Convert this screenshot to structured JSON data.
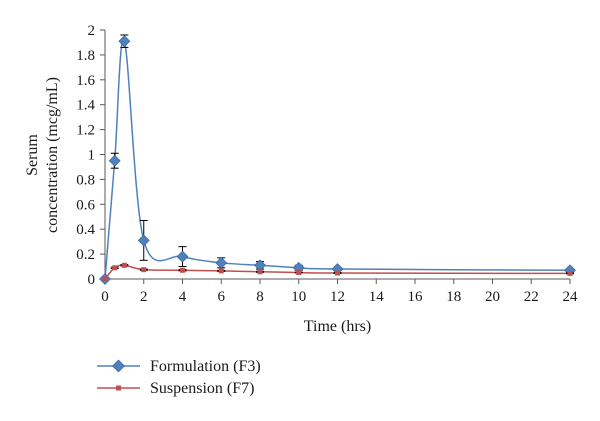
{
  "chart_data": {
    "type": "line",
    "xlabel": "Time (hrs)",
    "ylabel_lines": [
      "Serum",
      "concentration (mcg/mL)"
    ],
    "x_ticks": [
      "0",
      "2",
      "4",
      "6",
      "8",
      "10",
      "12",
      "14",
      "16",
      "18",
      "20",
      "22",
      "24"
    ],
    "y_ticks": [
      "0",
      "0.2",
      "0.4",
      "0.6",
      "0.8",
      "1",
      "1.2",
      "1.4",
      "1.6",
      "1.8",
      "2"
    ],
    "xlim": [
      0,
      24
    ],
    "ylim": [
      0,
      2
    ],
    "grid": false,
    "legend_position": "bottom-left",
    "series": [
      {
        "name": "Formulation (F3)",
        "color": "#4f81bd",
        "marker": "diamond",
        "x": [
          0,
          0.5,
          1,
          2,
          4,
          6,
          8,
          10,
          12,
          24
        ],
        "y": [
          0,
          0.95,
          1.91,
          0.31,
          0.18,
          0.13,
          0.11,
          0.09,
          0.08,
          0.07
        ],
        "error": [
          0,
          0.06,
          0.05,
          0.16,
          0.08,
          0.04,
          0.03,
          0.02,
          0.01,
          0.01
        ]
      },
      {
        "name": "Suspension (F7)",
        "color": "#c0504d",
        "marker": "square",
        "x": [
          0,
          0.5,
          1,
          2,
          4,
          6,
          8,
          10,
          12,
          24
        ],
        "y": [
          0,
          0.09,
          0.11,
          0.075,
          0.07,
          0.065,
          0.058,
          0.052,
          0.048,
          0.045
        ],
        "error": [
          0,
          0.005,
          0.005,
          0.005,
          0.005,
          0.004,
          0.004,
          0.003,
          0.003,
          0.003
        ]
      }
    ]
  }
}
